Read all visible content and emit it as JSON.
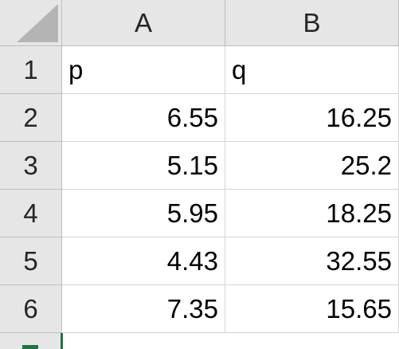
{
  "columns": [
    "A",
    "B"
  ],
  "rows": [
    {
      "num": "1",
      "a": "p",
      "b": "q"
    },
    {
      "num": "2",
      "a": "6.55",
      "b": "16.25"
    },
    {
      "num": "3",
      "a": "5.15",
      "b": "25.2"
    },
    {
      "num": "4",
      "a": "5.95",
      "b": "18.25"
    },
    {
      "num": "5",
      "a": "4.43",
      "b": "32.55"
    },
    {
      "num": "6",
      "a": "7.35",
      "b": "15.65"
    }
  ],
  "colors": {
    "header_bg": "#e6e6e6",
    "gridline": "#d4d4d4",
    "selection_accent": "#217346"
  }
}
